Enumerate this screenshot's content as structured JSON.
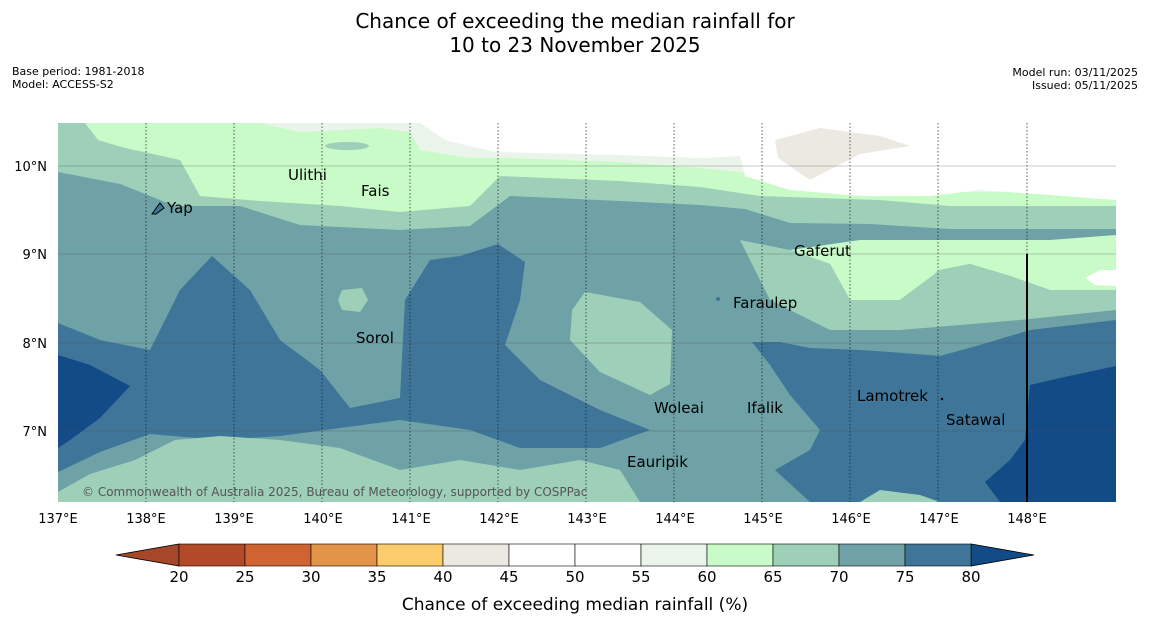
{
  "title": {
    "line1": "Chance of exceeding the median rainfall for",
    "line2": "10 to 23 November 2025"
  },
  "meta_left": {
    "base_period": "Base period: 1981-2018",
    "model": "Model: ACCESS-S2"
  },
  "meta_right": {
    "model_run": "Model run: 03/11/2025",
    "issued": "Issued: 05/11/2025"
  },
  "map": {
    "longitude_ticks": [
      "137°E",
      "138°E",
      "139°E",
      "140°E",
      "141°E",
      "142°E",
      "143°E",
      "144°E",
      "145°E",
      "146°E",
      "147°E",
      "148°E"
    ],
    "latitude_ticks": [
      "10°N",
      "9°N",
      "8°N",
      "7°N"
    ],
    "places": [
      "Ulithi",
      "Fais",
      "Yap",
      "Gaferut",
      "Faraulep",
      "Sorol",
      "Lamotrek",
      "Woleai",
      "Ifalik",
      "Satawal",
      "Eauripik"
    ],
    "copyright": "© Commonwealth of Australia 2025, Bureau of Meteorology, supported by COSPPac"
  },
  "colorbar": {
    "ticks": [
      "20",
      "25",
      "30",
      "35",
      "40",
      "45",
      "50",
      "55",
      "60",
      "65",
      "70",
      "75",
      "80"
    ],
    "colors": [
      "#b24a2a",
      "#cf6432",
      "#e29448",
      "#fccc6c",
      "#ece9e3",
      "#ffffff",
      "#ffffff",
      "#ebf4ea",
      "#c9fbc9",
      "#9ecfb9",
      "#6ea2a6",
      "#3e7598"
    ],
    "low_extend_color": "#a6472a",
    "high_extend_color": "#124b85",
    "label": "Chance of exceeding median rainfall (%)"
  }
}
